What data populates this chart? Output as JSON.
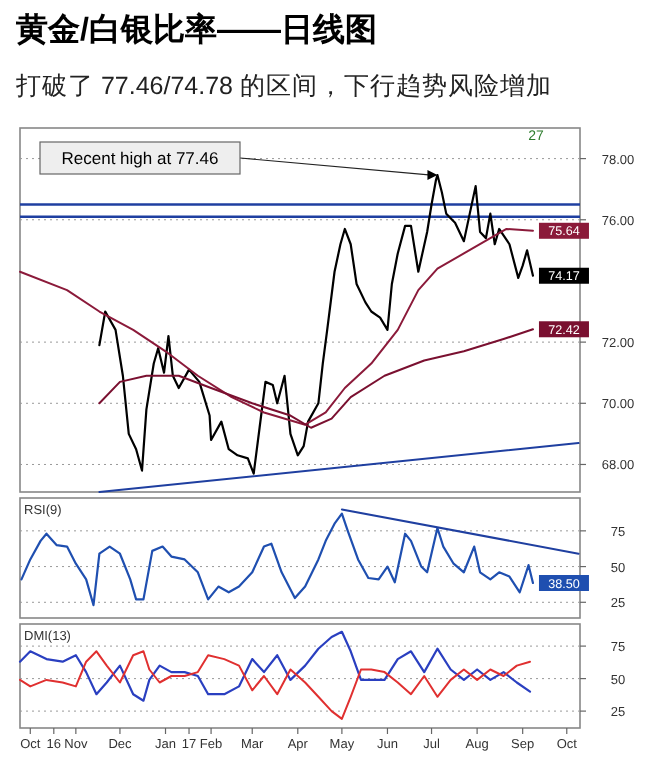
{
  "chart_data": [
    {
      "type": "line",
      "title": "黄金/白银比率——日线图",
      "subtitle": "打破了 77.46/74.78 的区间，下行趋势风险增加",
      "annotations": [
        {
          "text": "Recent high at 77.46",
          "x": "2017-07-05",
          "y": 77.46
        },
        "27"
      ],
      "xlim": [
        "2016-09-24",
        "2017-10-10"
      ],
      "ylim": [
        67.1,
        79.0
      ],
      "yticks": [
        {
          "value": 68,
          "label": "68.00"
        },
        {
          "value": 70,
          "label": "70.00"
        },
        {
          "value": 72,
          "label": "72.00"
        },
        {
          "value": 76,
          "label": "76.00"
        },
        {
          "value": 78,
          "label": "78.00"
        }
      ],
      "tick_labels": "y",
      "grid": "y",
      "ref_lines": [
        {
          "axis": "y",
          "value": 76.5,
          "color": "#1f3fa0"
        },
        {
          "axis": "y",
          "value": 76.1,
          "color": "#1f3fa0"
        }
      ],
      "series": [
        {
          "color": "#000000",
          "x": [
            "2016-11-17",
            "2016-11-21",
            "2016-11-28",
            "2016-12-03",
            "2016-12-07",
            "2016-12-12",
            "2016-12-16",
            "2016-12-19",
            "2016-12-24",
            "2016-12-27",
            "2016-12-31",
            "2017-01-03",
            "2017-01-06",
            "2017-01-10",
            "2017-01-17",
            "2017-01-24",
            "2017-01-31",
            "2017-02-01",
            "2017-02-08",
            "2017-02-13",
            "2017-02-19",
            "2017-02-26",
            "2017-03-02",
            "2017-03-06",
            "2017-03-10",
            "2017-03-15",
            "2017-03-18",
            "2017-03-23",
            "2017-03-27",
            "2017-04-01",
            "2017-04-05",
            "2017-04-08",
            "2017-04-15",
            "2017-04-18",
            "2017-04-21",
            "2017-04-26",
            "2017-04-30",
            "2017-05-03",
            "2017-05-07",
            "2017-05-11",
            "2017-05-17",
            "2017-05-21",
            "2017-05-27",
            "2017-06-01",
            "2017-06-04",
            "2017-06-08",
            "2017-06-13",
            "2017-06-17",
            "2017-06-22",
            "2017-06-28",
            "2017-07-01",
            "2017-07-04",
            "2017-07-05",
            "2017-07-08",
            "2017-07-11",
            "2017-07-17",
            "2017-07-23",
            "2017-07-27",
            "2017-07-31",
            "2017-08-03",
            "2017-08-07",
            "2017-08-10",
            "2017-08-13",
            "2017-08-16",
            "2017-08-23",
            "2017-08-29",
            "2017-09-01",
            "2017-09-04",
            "2017-09-08"
          ],
          "values": [
            71.9,
            73.0,
            72.4,
            70.9,
            69.0,
            68.5,
            67.8,
            69.8,
            71.3,
            71.8,
            71.0,
            72.2,
            70.9,
            70.5,
            71.1,
            70.7,
            69.6,
            68.8,
            69.4,
            68.5,
            68.3,
            68.2,
            67.7,
            69.2,
            70.7,
            70.6,
            70.0,
            70.9,
            69.0,
            68.3,
            68.6,
            69.4,
            70.0,
            71.3,
            72.4,
            74.3,
            75.2,
            75.7,
            75.2,
            73.9,
            73.3,
            73.0,
            72.8,
            72.4,
            73.9,
            74.9,
            75.8,
            75.8,
            74.3,
            75.6,
            76.5,
            77.3,
            77.46,
            76.9,
            76.2,
            75.9,
            75.3,
            76.2,
            77.1,
            75.6,
            75.4,
            76.2,
            75.2,
            75.7,
            75.2,
            74.1,
            74.5,
            75.0,
            74.17
          ],
          "value_labels": [
            null,
            null,
            null,
            null,
            null,
            null,
            null,
            null,
            null,
            null,
            null,
            null,
            null,
            null,
            null,
            null,
            null,
            null,
            null,
            null,
            null,
            null,
            null,
            null,
            null,
            null,
            null,
            null,
            null,
            null,
            null,
            null,
            null,
            null,
            null,
            null,
            null,
            null,
            null,
            null,
            null,
            null,
            null,
            null,
            null,
            null,
            null,
            null,
            null,
            null,
            null,
            null,
            null,
            null,
            null,
            null,
            null,
            null,
            null,
            null,
            null,
            null,
            null,
            null,
            null,
            null,
            null,
            null,
            "74.17"
          ]
        },
        {
          "color": "#8b1a3a",
          "x": [
            "2016-09-24",
            "2016-10-26",
            "2016-11-17",
            "2016-12-10",
            "2017-01-01",
            "2017-01-23",
            "2017-02-15",
            "2017-03-09",
            "2017-04-06",
            "2017-04-20",
            "2017-05-03",
            "2017-05-21",
            "2017-06-08",
            "2017-06-22",
            "2017-07-05",
            "2017-07-23",
            "2017-08-10",
            "2017-08-21",
            "2017-09-08"
          ],
          "values": [
            74.3,
            73.7,
            73.0,
            72.4,
            71.7,
            70.9,
            70.2,
            69.7,
            69.3,
            69.7,
            70.5,
            71.3,
            72.4,
            73.7,
            74.4,
            74.9,
            75.4,
            75.7,
            75.64
          ],
          "value_labels": [
            null,
            null,
            null,
            null,
            null,
            null,
            null,
            null,
            null,
            null,
            null,
            null,
            null,
            null,
            null,
            null,
            null,
            null,
            "75.64"
          ]
        },
        {
          "color": "#7a1030",
          "x": [
            "2016-11-17",
            "2016-12-01",
            "2016-12-19",
            "2017-01-10",
            "2017-02-01",
            "2017-03-01",
            "2017-03-27",
            "2017-04-10",
            "2017-04-24",
            "2017-05-07",
            "2017-05-30",
            "2017-06-26",
            "2017-07-23",
            "2017-08-19",
            "2017-09-08"
          ],
          "values": [
            70.0,
            70.7,
            70.9,
            70.9,
            70.5,
            70.0,
            69.6,
            69.2,
            69.5,
            70.2,
            70.9,
            71.4,
            71.7,
            72.1,
            72.42
          ],
          "value_labels": [
            null,
            null,
            null,
            null,
            null,
            null,
            null,
            null,
            null,
            null,
            null,
            null,
            null,
            null,
            "72.42"
          ]
        },
        {
          "color": "#1f3fa0",
          "x": [
            "2016-11-17",
            "2017-10-09"
          ],
          "values": [
            67.1,
            68.7
          ]
        }
      ]
    },
    {
      "type": "line",
      "title": "RSI(9)",
      "xlim": [
        "2016-09-24",
        "2017-10-10"
      ],
      "ylim": [
        14,
        98
      ],
      "yticks": [
        25,
        50,
        75
      ],
      "tick_labels": "y",
      "grid": "y",
      "series": [
        {
          "color": "#1f4fb0",
          "x": [
            "2016-09-25",
            "2016-10-01",
            "2016-10-08",
            "2016-10-12",
            "2016-10-19",
            "2016-10-26",
            "2016-11-01",
            "2016-11-08",
            "2016-11-13",
            "2016-11-17",
            "2016-11-24",
            "2016-12-01",
            "2016-12-08",
            "2016-12-12",
            "2016-12-17",
            "2016-12-23",
            "2016-12-30",
            "2017-01-05",
            "2017-01-14",
            "2017-01-23",
            "2017-01-30",
            "2017-02-06",
            "2017-02-13",
            "2017-02-20",
            "2017-03-01",
            "2017-03-09",
            "2017-03-14",
            "2017-03-21",
            "2017-03-30",
            "2017-04-06",
            "2017-04-15",
            "2017-04-20",
            "2017-04-26",
            "2017-05-01",
            "2017-05-05",
            "2017-05-12",
            "2017-05-19",
            "2017-05-26",
            "2017-06-01",
            "2017-06-06",
            "2017-06-13",
            "2017-06-17",
            "2017-06-24",
            "2017-06-28",
            "2017-07-05",
            "2017-07-09",
            "2017-07-16",
            "2017-07-23",
            "2017-07-30",
            "2017-08-03",
            "2017-08-10",
            "2017-08-16",
            "2017-08-23",
            "2017-08-30",
            "2017-09-05",
            "2017-09-08"
          ],
          "values": [
            41,
            55,
            68,
            73,
            65,
            64,
            52,
            41,
            23,
            59,
            64,
            59,
            41,
            27,
            27,
            61,
            64,
            57,
            55,
            46,
            27,
            36,
            32,
            36,
            46,
            64,
            66,
            46,
            28,
            36,
            55,
            68,
            80,
            87,
            75,
            55,
            42,
            41,
            50,
            39,
            73,
            68,
            50,
            46,
            77,
            64,
            52,
            46,
            64,
            46,
            41,
            46,
            43,
            32,
            51,
            38.5
          ],
          "value_labels": [
            null,
            null,
            null,
            null,
            null,
            null,
            null,
            null,
            null,
            null,
            null,
            null,
            null,
            null,
            null,
            null,
            null,
            null,
            null,
            null,
            null,
            null,
            null,
            null,
            null,
            null,
            null,
            null,
            null,
            null,
            null,
            null,
            null,
            null,
            null,
            null,
            null,
            null,
            null,
            null,
            null,
            null,
            null,
            null,
            null,
            null,
            null,
            null,
            null,
            null,
            null,
            null,
            null,
            null,
            null,
            "38.50"
          ]
        },
        {
          "color": "#1f3fa0",
          "x": [
            "2017-05-01",
            "2017-10-09"
          ],
          "values": [
            90,
            59
          ]
        }
      ]
    },
    {
      "type": "line",
      "title": "DMI(13)",
      "xlim": [
        "2016-09-24",
        "2017-10-10"
      ],
      "ylim": [
        12,
        92
      ],
      "yticks": [
        25,
        50,
        75
      ],
      "grid": "y",
      "xticks": [
        {
          "value": "2016-10-01",
          "label": "Oct"
        },
        {
          "value": "2016-10-17",
          "label": "16"
        },
        {
          "value": "2016-11-01",
          "label": "Nov"
        },
        {
          "value": "2016-12-01",
          "label": "Dec"
        },
        {
          "value": "2017-01-01",
          "label": "Jan"
        },
        {
          "value": "2017-01-17",
          "label": "17"
        },
        {
          "value": "2017-02-01",
          "label": "Feb"
        },
        {
          "value": "2017-03-01",
          "label": "Mar"
        },
        {
          "value": "2017-04-01",
          "label": "Apr"
        },
        {
          "value": "2017-05-01",
          "label": "May"
        },
        {
          "value": "2017-06-01",
          "label": "Jun"
        },
        {
          "value": "2017-07-01",
          "label": "Jul"
        },
        {
          "value": "2017-08-01",
          "label": "Aug"
        },
        {
          "value": "2017-09-01",
          "label": "Sep"
        },
        {
          "value": "2017-10-01",
          "label": "Oct"
        }
      ],
      "series": [
        {
          "color": "#2a3fc0",
          "x": [
            "2016-09-24",
            "2016-10-01",
            "2016-10-12",
            "2016-10-23",
            "2016-11-01",
            "2016-11-08",
            "2016-11-15",
            "2016-11-22",
            "2016-12-01",
            "2016-12-10",
            "2016-12-17",
            "2016-12-21",
            "2016-12-28",
            "2017-01-05",
            "2017-01-14",
            "2017-01-23",
            "2017-01-30",
            "2017-02-10",
            "2017-02-20",
            "2017-03-01",
            "2017-03-09",
            "2017-03-18",
            "2017-03-27",
            "2017-04-06",
            "2017-04-15",
            "2017-04-24",
            "2017-05-01",
            "2017-05-07",
            "2017-05-14",
            "2017-05-21",
            "2017-05-30",
            "2017-06-08",
            "2017-06-17",
            "2017-06-26",
            "2017-07-05",
            "2017-07-14",
            "2017-07-23",
            "2017-08-01",
            "2017-08-10",
            "2017-08-19",
            "2017-08-28",
            "2017-09-06"
          ],
          "values": [
            63,
            71,
            65,
            63,
            68,
            55,
            38,
            47,
            60,
            38,
            33,
            49,
            60,
            55,
            55,
            52,
            38,
            38,
            44,
            65,
            55,
            68,
            49,
            60,
            73,
            82,
            86,
            71,
            49,
            49,
            49,
            65,
            71,
            55,
            73,
            57,
            49,
            57,
            49,
            55,
            47,
            40
          ]
        },
        {
          "color": "#e03030",
          "x": [
            "2016-09-24",
            "2016-10-01",
            "2016-10-12",
            "2016-10-23",
            "2016-11-01",
            "2016-11-08",
            "2016-11-15",
            "2016-11-22",
            "2016-12-01",
            "2016-12-10",
            "2016-12-17",
            "2016-12-21",
            "2016-12-28",
            "2017-01-05",
            "2017-01-14",
            "2017-01-23",
            "2017-01-30",
            "2017-02-10",
            "2017-02-20",
            "2017-03-01",
            "2017-03-09",
            "2017-03-18",
            "2017-03-27",
            "2017-04-06",
            "2017-04-15",
            "2017-04-24",
            "2017-05-01",
            "2017-05-07",
            "2017-05-14",
            "2017-05-21",
            "2017-05-30",
            "2017-06-08",
            "2017-06-17",
            "2017-06-26",
            "2017-07-05",
            "2017-07-14",
            "2017-07-23",
            "2017-08-01",
            "2017-08-10",
            "2017-08-19",
            "2017-08-28",
            "2017-09-06"
          ],
          "values": [
            49,
            44,
            49,
            47,
            44,
            63,
            71,
            60,
            47,
            68,
            71,
            57,
            47,
            52,
            52,
            55,
            68,
            65,
            60,
            41,
            52,
            38,
            57,
            47,
            36,
            25,
            19,
            36,
            57,
            57,
            55,
            47,
            38,
            52,
            36,
            49,
            57,
            49,
            57,
            52,
            60,
            63
          ]
        }
      ]
    }
  ]
}
